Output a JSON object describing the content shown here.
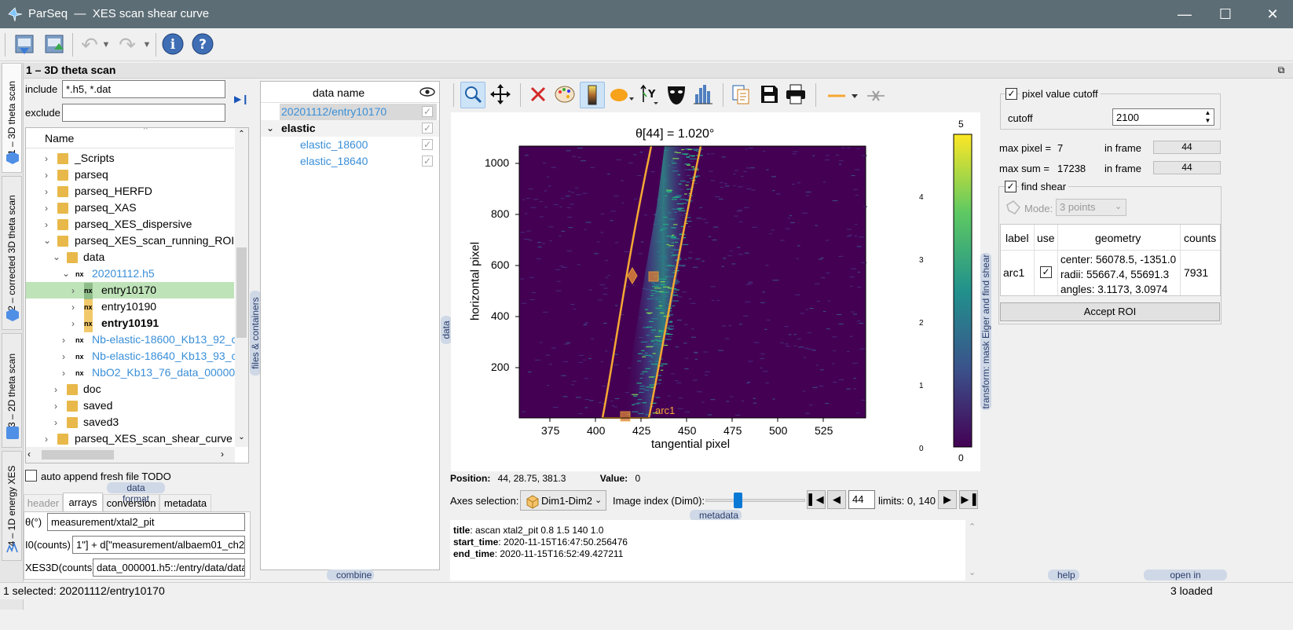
{
  "window": {
    "app": "ParSeq",
    "separator": "—",
    "title": "XES scan shear curve"
  },
  "tabs": [
    {
      "label": "1 – 3D theta scan"
    },
    {
      "label": "2 – corrected 3D theta scan"
    },
    {
      "label": "3 – 2D theta scan"
    },
    {
      "label": "4 – 1D energy XES"
    }
  ],
  "panel_title": "1 – 3D theta scan",
  "filter": {
    "include_label": "include",
    "include_value": "*.h5, *.dat",
    "exclude_label": "exclude",
    "exclude_value": ""
  },
  "tree": {
    "header": "Name",
    "items": [
      {
        "label": "_Scripts"
      },
      {
        "label": "parseq"
      },
      {
        "label": "parseq_HERFD"
      },
      {
        "label": "parseq_XAS"
      },
      {
        "label": "parseq_XES_dispersive"
      },
      {
        "label": "parseq_XES_scan_running_ROI"
      },
      {
        "label": "data"
      },
      {
        "label": "20201112.h5"
      },
      {
        "label": "entry10170"
      },
      {
        "label": "entry10190"
      },
      {
        "label": "entry10191"
      },
      {
        "label": "Nb-elastic-18600_Kb13_92_c"
      },
      {
        "label": "Nb-elastic-18640_Kb13_93_c"
      },
      {
        "label": "NbO2_Kb13_76_data_000001"
      },
      {
        "label": "doc"
      },
      {
        "label": "saved"
      },
      {
        "label": "saved3"
      },
      {
        "label": "parseq_XES_scan_shear_curve"
      }
    ],
    "nx_badge": "nx"
  },
  "files_containers_tag": "files & containers",
  "auto_append_label": "auto append fresh file TODO",
  "data_format_tag": "data format",
  "format_tabs": [
    "header",
    "arrays",
    "conversion",
    "metadata"
  ],
  "format_fields": [
    {
      "label": "θ(°)",
      "value": "measurement/xtal2_pit"
    },
    {
      "label": "I0(counts)",
      "value": "1\"] + d[\"measurement/albaem01_ch2\"]"
    },
    {
      "label": "XES3D(counts)",
      "value": "data_000001.h5::/entry/data/data"
    }
  ],
  "combine_tag": "combine",
  "data_list": {
    "header": "data name",
    "items": [
      {
        "label": "20201112/entry10170"
      },
      {
        "label": "elastic"
      },
      {
        "label": "elastic_18600"
      },
      {
        "label": "elastic_18640"
      }
    ]
  },
  "data_tag": "data",
  "plot": {
    "title": "θ[44] = 1.020°",
    "xlabel": "tangential pixel",
    "ylabel": "horizontal pixel",
    "x_ticks": [
      "375",
      "400",
      "425",
      "450",
      "475",
      "500",
      "525"
    ],
    "y_ticks": [
      "1000",
      "800",
      "600",
      "400",
      "200"
    ],
    "roi_label": "arc1",
    "colorbar_ticks": [
      "0",
      "1",
      "2",
      "3",
      "4"
    ],
    "colorbar_top": "5",
    "colorbar_bottom": "0",
    "transform_tag": "transform: mask Eiger and find shear"
  },
  "position": {
    "label": "Position:",
    "value": "44, 28.75, 381.3",
    "value_label": "Value:",
    "value_value": "0"
  },
  "axes_selection": {
    "label": "Axes selection:",
    "value": "Dim1-Dim2",
    "image_index_label": "Image index (Dim0):",
    "image_index": "44",
    "limits": "limits: 0, 140",
    "slider_fraction": 0.314
  },
  "metadata_tag": "metadata",
  "metadata": [
    {
      "key": "title",
      "value": ": ascan xtal2_pit 0.8 1.5 140 1.0"
    },
    {
      "key": "start_time",
      "value": ": 2020-11-15T16:47:50.256476"
    },
    {
      "key": "end_time",
      "value": ": 2020-11-15T16:52:49.427211"
    }
  ],
  "right": {
    "cutoff_check_label": "pixel value cutoff",
    "cutoff_label": "cutoff",
    "cutoff_value": "2100",
    "max_pixel_label": "max pixel =",
    "max_pixel_value": "7",
    "max_sum_label": "max sum =",
    "max_sum_value": "17238",
    "in_frame_label": "in frame",
    "in_frame_1": "44",
    "in_frame_2": "44",
    "find_shear_label": "find shear",
    "mode_label": "Mode:",
    "mode_value": "3 points",
    "table_headers": [
      "label",
      "use",
      "geometry",
      "counts"
    ],
    "roi_row": {
      "label": "arc1",
      "center": "center: 56078.5, -1351.0",
      "radii": "radii: 55667.4, 55691.3",
      "angles": "angles: 3.1173, 3.0974",
      "counts": "7931"
    },
    "accept_button": "Accept ROI",
    "help_tag": "help",
    "open_browser_tag": "open in browser"
  },
  "status": {
    "selected": "1 selected: 20201112/entry10170",
    "loaded": "3 loaded"
  },
  "colors": {
    "titlebar": "#5c6d75",
    "roi": "#f5a833",
    "link": "#3a8fd8",
    "selected_row": "#bfe3b9"
  }
}
